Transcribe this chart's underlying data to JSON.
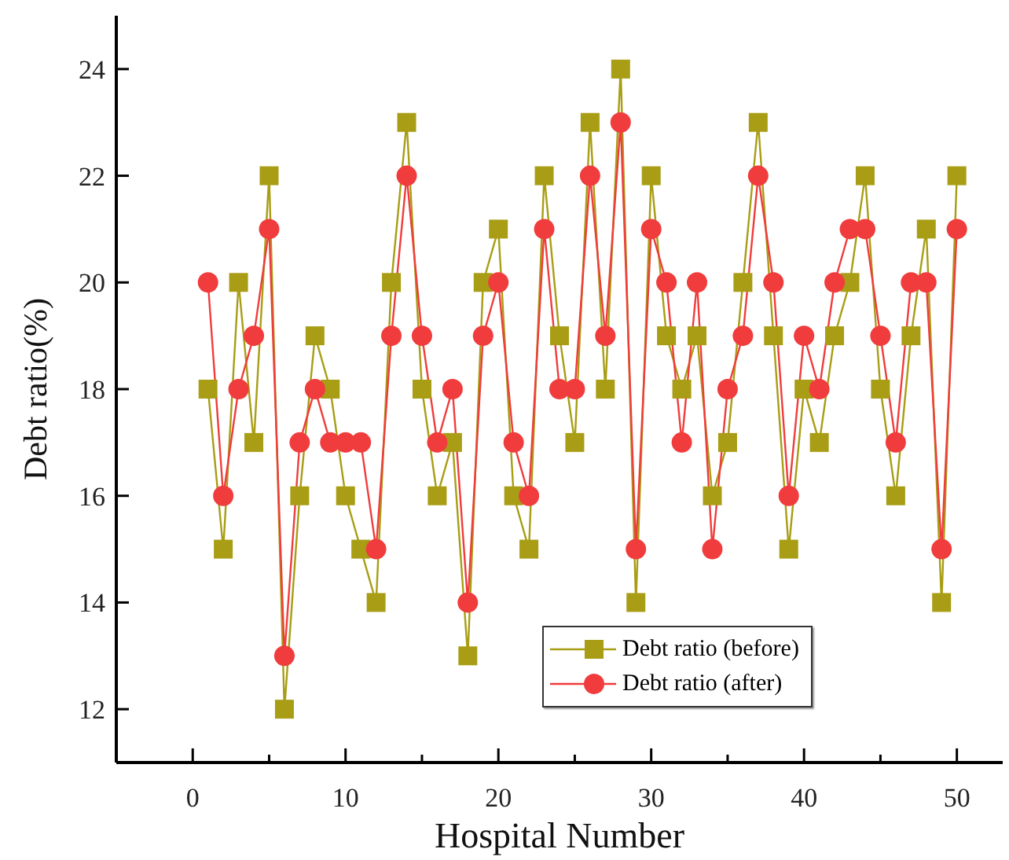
{
  "chart_data": {
    "type": "line",
    "xlabel": "Hospital Number",
    "ylabel": "Debt ratio(%)",
    "x": [
      1,
      2,
      3,
      4,
      5,
      6,
      7,
      8,
      9,
      10,
      11,
      12,
      13,
      14,
      15,
      16,
      17,
      18,
      19,
      20,
      21,
      22,
      23,
      24,
      25,
      26,
      27,
      28,
      29,
      30,
      31,
      32,
      33,
      34,
      35,
      36,
      37,
      38,
      39,
      40,
      41,
      42,
      43,
      44,
      45,
      46,
      47,
      48,
      49,
      50
    ],
    "series": [
      {
        "name": "Debt ratio (before)",
        "color": "#a89d14",
        "marker": "square",
        "values": [
          18,
          15,
          20,
          17,
          22,
          12,
          16,
          19,
          18,
          16,
          15,
          14,
          20,
          23,
          18,
          16,
          17,
          13,
          20,
          21,
          16,
          15,
          22,
          19,
          17,
          23,
          18,
          24,
          14,
          22,
          19,
          18,
          19,
          16,
          17,
          20,
          23,
          19,
          15,
          18,
          17,
          19,
          20,
          22,
          18,
          16,
          19,
          21,
          14,
          22
        ]
      },
      {
        "name": "Debt ratio (after)",
        "color": "#f03c3c",
        "marker": "circle",
        "values": [
          20,
          16,
          18,
          19,
          21,
          13,
          17,
          18,
          17,
          17,
          17,
          15,
          19,
          22,
          19,
          17,
          18,
          14,
          19,
          20,
          17,
          16,
          21,
          18,
          18,
          22,
          19,
          23,
          15,
          21,
          20,
          17,
          20,
          15,
          18,
          19,
          22,
          20,
          16,
          19,
          18,
          20,
          21,
          21,
          19,
          17,
          20,
          20,
          15,
          21
        ]
      }
    ],
    "xlim": [
      -5,
      53
    ],
    "xticks": [
      0,
      {
        "value": 5,
        "label": null
      },
      10,
      {
        "value": 15,
        "label": null
      },
      20,
      {
        "value": 25,
        "label": null
      },
      30,
      {
        "value": 35,
        "label": null
      },
      40,
      {
        "value": 45,
        "label": null
      },
      50
    ],
    "ylim": [
      11,
      25
    ],
    "yticks": [
      12,
      14,
      16,
      18,
      20,
      22,
      24
    ],
    "grid": false,
    "legend": "bottom"
  }
}
